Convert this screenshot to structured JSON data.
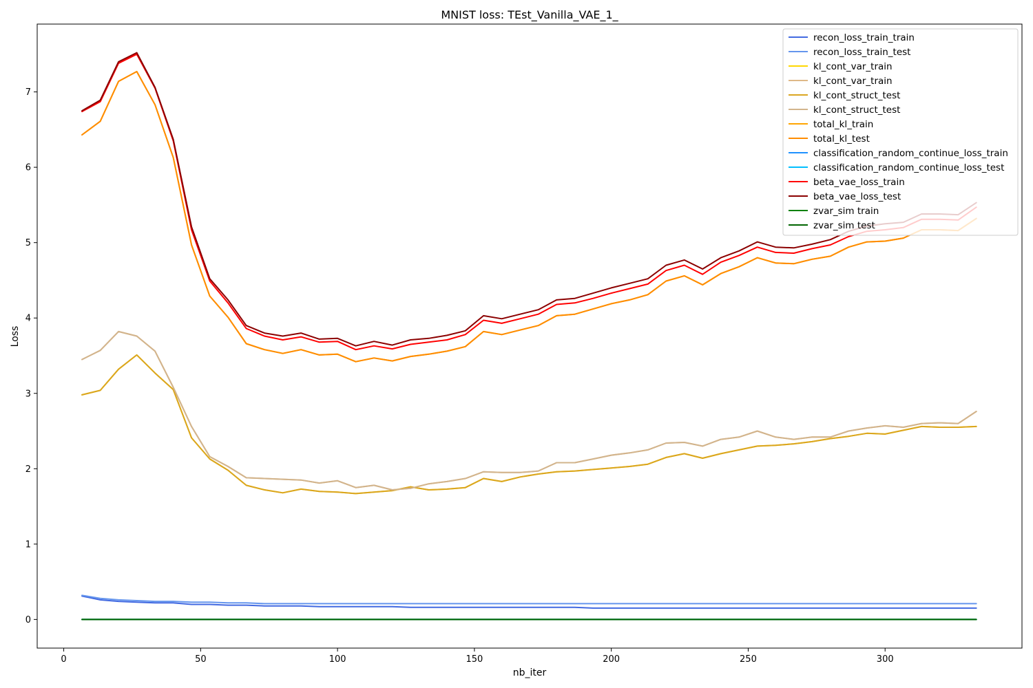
{
  "chart_data": {
    "type": "line",
    "title": "MNIST loss: TEst_Vanilla_VAE_1_",
    "xlabel": "nb_iter",
    "ylabel": "Loss",
    "xlim": [
      -9.7,
      350
    ],
    "ylim": [
      -0.38,
      7.9
    ],
    "xticks": [
      0,
      50,
      100,
      150,
      200,
      250,
      300
    ],
    "yticks": [
      0,
      1,
      2,
      3,
      4,
      5,
      6,
      7
    ],
    "grid": false,
    "legend_position": "top-right",
    "x": [
      6.67,
      13.33,
      20,
      26.67,
      33.33,
      40,
      46.67,
      53.33,
      60,
      66.67,
      73.33,
      80,
      86.67,
      93.33,
      100,
      106.67,
      113.33,
      120,
      126.67,
      133.33,
      140,
      146.67,
      153.33,
      160,
      166.67,
      173.33,
      180,
      186.67,
      193.33,
      200,
      206.67,
      213.33,
      220,
      226.67,
      233.33,
      240,
      246.67,
      253.33,
      260,
      266.67,
      273.33,
      280,
      286.67,
      293.33,
      300,
      306.67,
      313.33,
      320,
      326.67,
      333.33
    ],
    "series": [
      {
        "name": "recon_loss_train_train",
        "color": "#4169e1",
        "values": [
          0.31,
          0.26,
          0.24,
          0.23,
          0.22,
          0.22,
          0.2,
          0.2,
          0.19,
          0.19,
          0.18,
          0.18,
          0.18,
          0.17,
          0.17,
          0.17,
          0.17,
          0.17,
          0.16,
          0.16,
          0.16,
          0.16,
          0.16,
          0.16,
          0.16,
          0.16,
          0.16,
          0.16,
          0.15,
          0.15,
          0.15,
          0.15,
          0.15,
          0.15,
          0.15,
          0.15,
          0.15,
          0.15,
          0.15,
          0.15,
          0.15,
          0.15,
          0.15,
          0.15,
          0.15,
          0.15,
          0.15,
          0.15,
          0.15,
          0.15
        ]
      },
      {
        "name": "recon_loss_train_test",
        "color": "#6495ed",
        "values": [
          0.32,
          0.28,
          0.26,
          0.25,
          0.24,
          0.24,
          0.23,
          0.23,
          0.22,
          0.22,
          0.21,
          0.21,
          0.21,
          0.21,
          0.21,
          0.21,
          0.21,
          0.21,
          0.21,
          0.21,
          0.21,
          0.21,
          0.21,
          0.21,
          0.21,
          0.21,
          0.21,
          0.21,
          0.21,
          0.21,
          0.21,
          0.21,
          0.21,
          0.21,
          0.21,
          0.21,
          0.21,
          0.21,
          0.21,
          0.21,
          0.21,
          0.21,
          0.21,
          0.21,
          0.21,
          0.21,
          0.21,
          0.21,
          0.21,
          0.21
        ]
      },
      {
        "name": "kl_cont_var_train",
        "color": "#ffd700",
        "values": [
          2.98,
          3.04,
          3.32,
          3.51,
          3.27,
          3.05,
          2.41,
          2.13,
          1.98,
          1.78,
          1.72,
          1.68,
          1.73,
          1.7,
          1.69,
          1.67,
          1.69,
          1.71,
          1.76,
          1.72,
          1.73,
          1.75,
          1.87,
          1.83,
          1.89,
          1.93,
          1.96,
          1.97,
          1.99,
          2.01,
          2.03,
          2.06,
          2.15,
          2.2,
          2.14,
          2.2,
          2.25,
          2.3,
          2.31,
          2.33,
          2.36,
          2.4,
          2.43,
          2.47,
          2.46,
          2.51,
          2.56,
          2.55,
          2.55,
          2.56
        ]
      },
      {
        "name": "kl_cont_var_train",
        "color": "#deb887",
        "values": [
          3.45,
          3.57,
          3.82,
          3.76,
          3.56,
          3.08,
          2.56,
          2.16,
          2.03,
          1.88,
          1.87,
          1.86,
          1.85,
          1.81,
          1.84,
          1.75,
          1.78,
          1.72,
          1.74,
          1.8,
          1.83,
          1.87,
          1.96,
          1.95,
          1.95,
          1.97,
          2.08,
          2.08,
          2.13,
          2.18,
          2.21,
          2.25,
          2.34,
          2.35,
          2.3,
          2.39,
          2.42,
          2.5,
          2.42,
          2.39,
          2.42,
          2.42,
          2.5,
          2.54,
          2.57,
          2.55,
          2.6,
          2.61,
          2.6,
          2.76
        ]
      },
      {
        "name": "kl_cont_struct_test",
        "color": "#daa520",
        "values": [
          2.98,
          3.04,
          3.32,
          3.51,
          3.27,
          3.05,
          2.41,
          2.13,
          1.98,
          1.78,
          1.72,
          1.68,
          1.73,
          1.7,
          1.69,
          1.67,
          1.69,
          1.71,
          1.76,
          1.72,
          1.73,
          1.75,
          1.87,
          1.83,
          1.89,
          1.93,
          1.96,
          1.97,
          1.99,
          2.01,
          2.03,
          2.06,
          2.15,
          2.2,
          2.14,
          2.2,
          2.25,
          2.3,
          2.31,
          2.33,
          2.36,
          2.4,
          2.43,
          2.47,
          2.46,
          2.51,
          2.56,
          2.55,
          2.55,
          2.56
        ]
      },
      {
        "name": "kl_cont_struct_test",
        "color": "#d2b48c",
        "values": [
          3.45,
          3.57,
          3.82,
          3.76,
          3.56,
          3.08,
          2.56,
          2.16,
          2.03,
          1.88,
          1.87,
          1.86,
          1.85,
          1.81,
          1.84,
          1.75,
          1.78,
          1.72,
          1.74,
          1.8,
          1.83,
          1.87,
          1.96,
          1.95,
          1.95,
          1.97,
          2.08,
          2.08,
          2.13,
          2.18,
          2.21,
          2.25,
          2.34,
          2.35,
          2.3,
          2.39,
          2.42,
          2.5,
          2.42,
          2.39,
          2.42,
          2.42,
          2.5,
          2.54,
          2.57,
          2.55,
          2.6,
          2.61,
          2.6,
          2.76
        ]
      },
      {
        "name": "total_kl_train",
        "color": "#ffa500",
        "values": [
          6.43,
          6.61,
          7.14,
          7.27,
          6.83,
          6.13,
          4.97,
          4.29,
          4.01,
          3.66,
          3.58,
          3.53,
          3.58,
          3.51,
          3.52,
          3.42,
          3.47,
          3.43,
          3.49,
          3.52,
          3.56,
          3.62,
          3.82,
          3.78,
          3.84,
          3.9,
          4.03,
          4.05,
          4.12,
          4.19,
          4.24,
          4.31,
          4.49,
          4.56,
          4.44,
          4.59,
          4.68,
          4.8,
          4.73,
          4.72,
          4.78,
          4.82,
          4.94,
          5.01,
          5.02,
          5.06,
          5.17,
          5.17,
          5.16,
          5.32
        ]
      },
      {
        "name": "total_kl_test",
        "color": "#ff8c00",
        "values": [
          6.43,
          6.61,
          7.14,
          7.27,
          6.83,
          6.13,
          4.97,
          4.29,
          4.01,
          3.66,
          3.58,
          3.53,
          3.58,
          3.51,
          3.52,
          3.42,
          3.47,
          3.43,
          3.49,
          3.52,
          3.56,
          3.62,
          3.82,
          3.78,
          3.84,
          3.9,
          4.03,
          4.05,
          4.12,
          4.19,
          4.24,
          4.31,
          4.49,
          4.56,
          4.44,
          4.59,
          4.68,
          4.8,
          4.73,
          4.72,
          4.78,
          4.82,
          4.94,
          5.01,
          5.02,
          5.06,
          5.17,
          5.17,
          5.16,
          5.32
        ]
      },
      {
        "name": "classification_random_continue_loss_train",
        "color": "#1e90ff",
        "values": [
          0,
          0,
          0,
          0,
          0,
          0,
          0,
          0,
          0,
          0,
          0,
          0,
          0,
          0,
          0,
          0,
          0,
          0,
          0,
          0,
          0,
          0,
          0,
          0,
          0,
          0,
          0,
          0,
          0,
          0,
          0,
          0,
          0,
          0,
          0,
          0,
          0,
          0,
          0,
          0,
          0,
          0,
          0,
          0,
          0,
          0,
          0,
          0,
          0,
          0
        ]
      },
      {
        "name": "classification_random_continue_loss_test",
        "color": "#00bfff",
        "values": [
          0,
          0,
          0,
          0,
          0,
          0,
          0,
          0,
          0,
          0,
          0,
          0,
          0,
          0,
          0,
          0,
          0,
          0,
          0,
          0,
          0,
          0,
          0,
          0,
          0,
          0,
          0,
          0,
          0,
          0,
          0,
          0,
          0,
          0,
          0,
          0,
          0,
          0,
          0,
          0,
          0,
          0,
          0,
          0,
          0,
          0,
          0,
          0,
          0,
          0
        ]
      },
      {
        "name": "beta_vae_loss_train",
        "color": "#ff0000",
        "values": [
          6.74,
          6.87,
          7.38,
          7.5,
          7.05,
          6.35,
          5.17,
          4.49,
          4.2,
          3.86,
          3.76,
          3.71,
          3.75,
          3.68,
          3.69,
          3.58,
          3.63,
          3.59,
          3.65,
          3.68,
          3.71,
          3.78,
          3.97,
          3.93,
          3.99,
          4.05,
          4.18,
          4.2,
          4.26,
          4.33,
          4.39,
          4.45,
          4.63,
          4.7,
          4.58,
          4.74,
          4.83,
          4.94,
          4.87,
          4.86,
          4.92,
          4.97,
          5.08,
          5.15,
          5.17,
          5.2,
          5.31,
          5.31,
          5.3,
          5.47
        ]
      },
      {
        "name": "beta_vae_loss_test",
        "color": "#8b0000",
        "values": [
          6.75,
          6.89,
          7.4,
          7.52,
          7.06,
          6.37,
          5.21,
          4.52,
          4.24,
          3.9,
          3.8,
          3.76,
          3.8,
          3.72,
          3.73,
          3.63,
          3.69,
          3.64,
          3.71,
          3.73,
          3.77,
          3.83,
          4.03,
          3.99,
          4.05,
          4.11,
          4.24,
          4.26,
          4.33,
          4.4,
          4.46,
          4.52,
          4.7,
          4.77,
          4.65,
          4.8,
          4.89,
          5.01,
          4.94,
          4.93,
          4.98,
          5.04,
          5.15,
          5.22,
          5.25,
          5.27,
          5.38,
          5.38,
          5.37,
          5.53
        ]
      },
      {
        "name": "zvar_sim train",
        "color": "#008000",
        "values": [
          0,
          0,
          0,
          0,
          0,
          0,
          0,
          0,
          0,
          0,
          0,
          0,
          0,
          0,
          0,
          0,
          0,
          0,
          0,
          0,
          0,
          0,
          0,
          0,
          0,
          0,
          0,
          0,
          0,
          0,
          0,
          0,
          0,
          0,
          0,
          0,
          0,
          0,
          0,
          0,
          0,
          0,
          0,
          0,
          0,
          0,
          0,
          0,
          0,
          0
        ]
      },
      {
        "name": "zvar_sim test",
        "color": "#006400",
        "values": [
          0,
          0,
          0,
          0,
          0,
          0,
          0,
          0,
          0,
          0,
          0,
          0,
          0,
          0,
          0,
          0,
          0,
          0,
          0,
          0,
          0,
          0,
          0,
          0,
          0,
          0,
          0,
          0,
          0,
          0,
          0,
          0,
          0,
          0,
          0,
          0,
          0,
          0,
          0,
          0,
          0,
          0,
          0,
          0,
          0,
          0,
          0,
          0,
          0,
          0
        ]
      }
    ]
  }
}
